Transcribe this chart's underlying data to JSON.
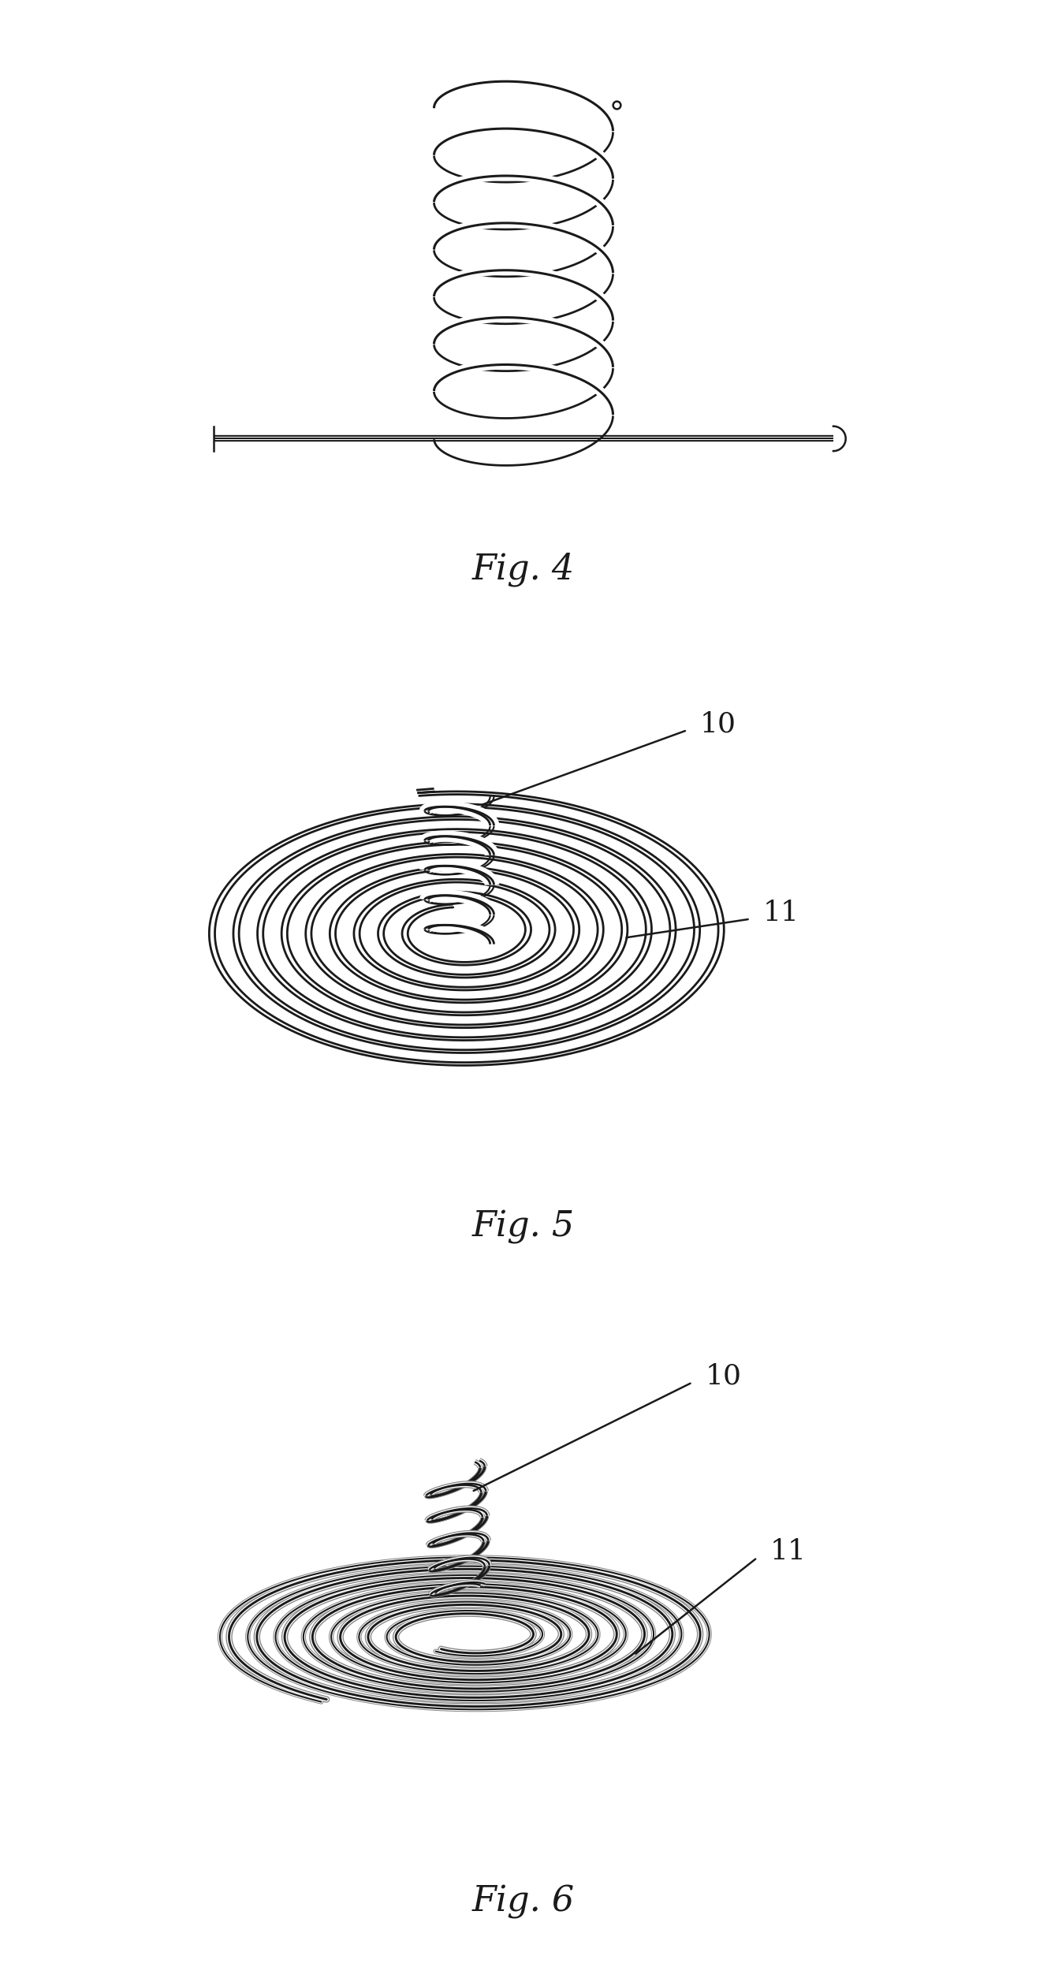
{
  "fig4_label": "Fig. 4",
  "fig5_label": "Fig. 5",
  "fig6_label": "Fig. 6",
  "label_10": "10",
  "label_11": "11",
  "bg_color": "#ffffff",
  "line_color": "#1a1a1a",
  "fig_caption_fontsize": 32,
  "label_fontsize": 26,
  "coil_lw": 2.2,
  "flat_spiral_lw": 2.0,
  "tube_spiral_lw": 3.0
}
